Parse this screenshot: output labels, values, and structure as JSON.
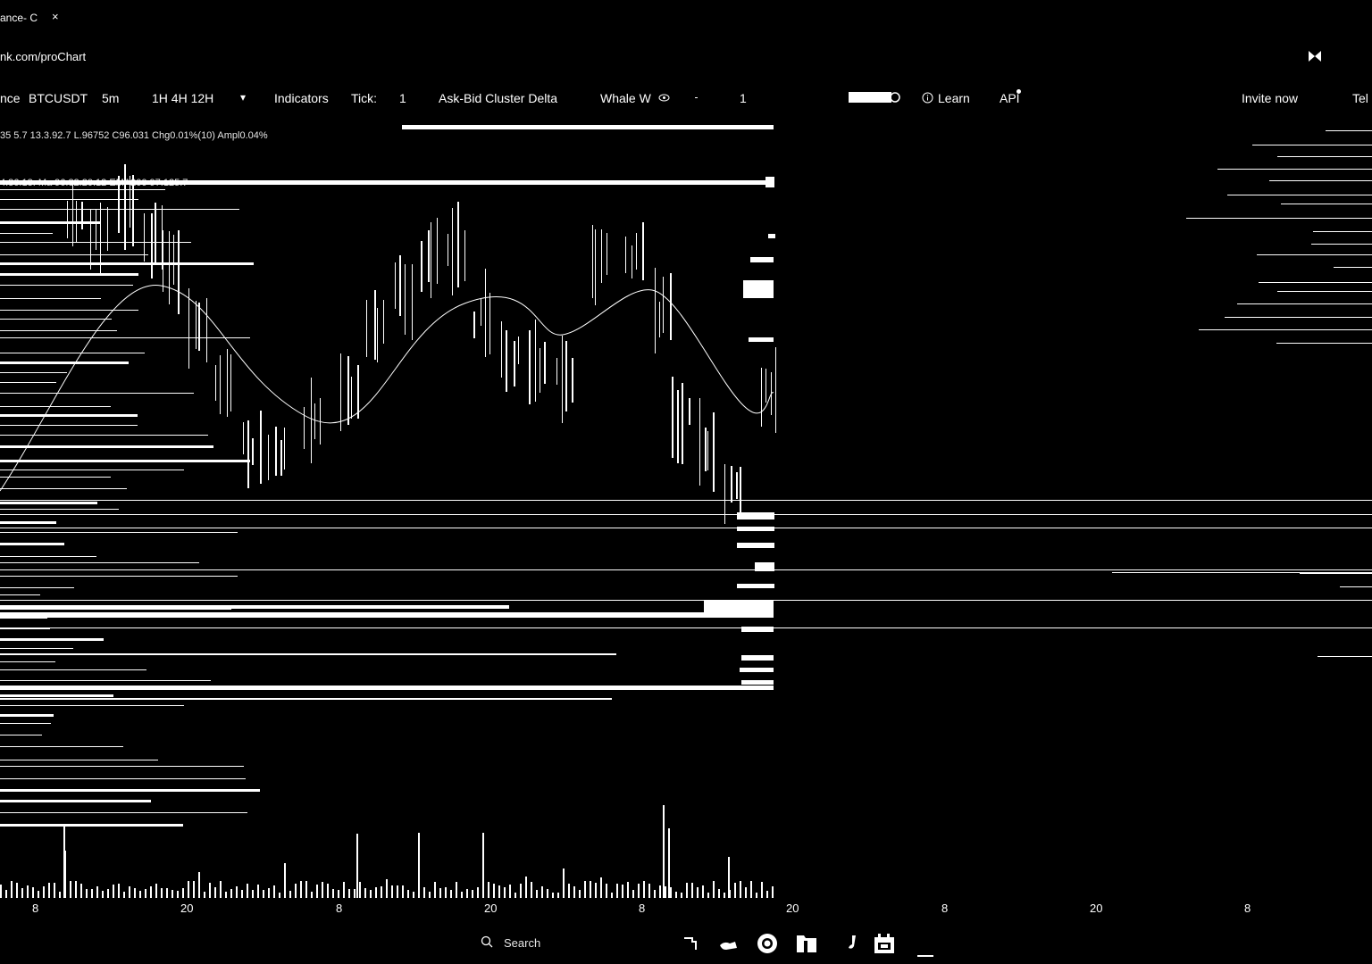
{
  "browser": {
    "tab_title": "ance- C",
    "tab_close": "×",
    "url": "nk.com/proChart"
  },
  "toolbar": {
    "prefix": "nce",
    "symbol": "BTCUSDT",
    "interval": "5m",
    "intervals": "1H 4H 12H",
    "dropdown_glyph": "▾",
    "indicators": "Indicators",
    "tick_label": "Tick:",
    "tick_value": "1",
    "cluster": "Ask-Bid Cluster Delta",
    "whale": "Whale W",
    "whale_value": "1",
    "learn": "Learn",
    "api": "API",
    "invite": "Invite now",
    "tele": "Tel"
  },
  "chart": {
    "stats_line": "35  5.7  13.3.92.7  L.96752  C96.031  Chg0.01%(10)  Ampl0.04%",
    "ma_line": "4.86.13.  Ma   96.82.20.12  EMA200 97.125.7",
    "x_ticks": [
      "8",
      "20",
      "8",
      "20",
      "8",
      "20",
      "8",
      "20",
      "8"
    ]
  },
  "taskbar": {
    "search_label": "Search"
  }
}
